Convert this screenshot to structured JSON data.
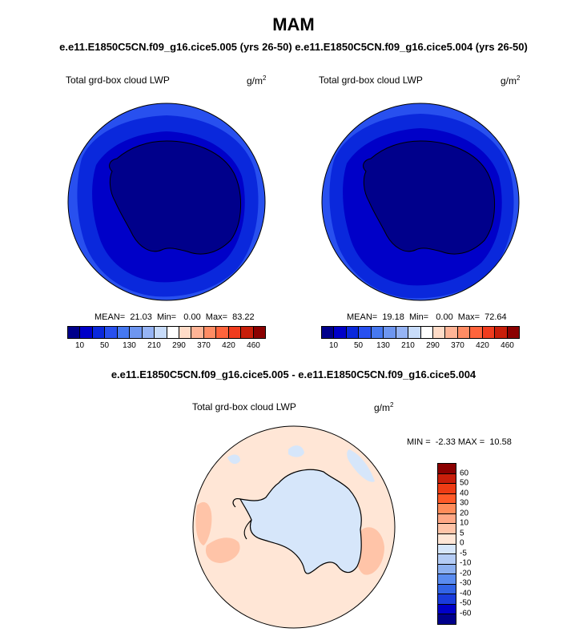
{
  "figure": {
    "title": "MAM",
    "subtitle": "e.e11.E1850C5CN.f09_g16.cice5.005 (yrs 26-50)  e.e11.E1850C5CN.f09_g16.cice5.004 (yrs 26-50)"
  },
  "panels": [
    {
      "label": "Total grd-box cloud LWP",
      "units_base": "g/m",
      "units_exp": "2",
      "stats": "MEAN=  21.03  Min=   0.00  Max=  83.22",
      "mean": 21.03,
      "min": 0.0,
      "max": 83.22
    },
    {
      "label": "Total grd-box cloud LWP",
      "units_base": "g/m",
      "units_exp": "2",
      "stats": "MEAN=  19.18  Min=   0.00  Max=  72.64",
      "mean": 19.18,
      "min": 0.0,
      "max": 72.64
    }
  ],
  "colorbar_main": {
    "colors": [
      "#00008b",
      "#0000c8",
      "#0a28dc",
      "#2850ef",
      "#4678f0",
      "#6e96f0",
      "#96b4f5",
      "#c8dcfa",
      "#ffffff",
      "#ffdcc8",
      "#ffb496",
      "#ff8c64",
      "#ff643c",
      "#f03c1e",
      "#c81e0a",
      "#8b0000"
    ],
    "labels": [
      "10",
      "50",
      "130",
      "210",
      "290",
      "370",
      "420",
      "460"
    ]
  },
  "difference_panel": {
    "title": "e.e11.E1850C5CN.f09_g16.cice5.005 - e.e11.E1850C5CN.f09_g16.cice5.004",
    "label": "Total grd-box cloud LWP",
    "units_base": "g/m",
    "units_exp": "2",
    "stats": "MIN =  -2.33 MAX =  10.58",
    "min": -2.33,
    "max": 10.58
  },
  "colorbar_diff": {
    "colors": [
      "#8b0000",
      "#c81e0a",
      "#ee3c14",
      "#ff5a28",
      "#ff8c5a",
      "#ffa886",
      "#ffc4a8",
      "#ffe6d6",
      "#d6e6fa",
      "#b4ccf5",
      "#8cb0f0",
      "#5a8cf0",
      "#3264e6",
      "#1a3cdc",
      "#0000c8",
      "#00008b"
    ],
    "labels": [
      "60",
      "50",
      "40",
      "30",
      "20",
      "10",
      "5",
      "0",
      "-5",
      "-10",
      "-20",
      "-30",
      "-40",
      "-50",
      "-60"
    ]
  },
  "map_colors": {
    "ocean_far": "#2850ef",
    "ocean_mid": "#0a28dc",
    "ocean_near": "#0000c8",
    "antarctica": "#00008b",
    "diff_bg": "#ffe6d6",
    "diff_pos": "#ffc4a8",
    "diff_neg": "#d6e6fa"
  }
}
